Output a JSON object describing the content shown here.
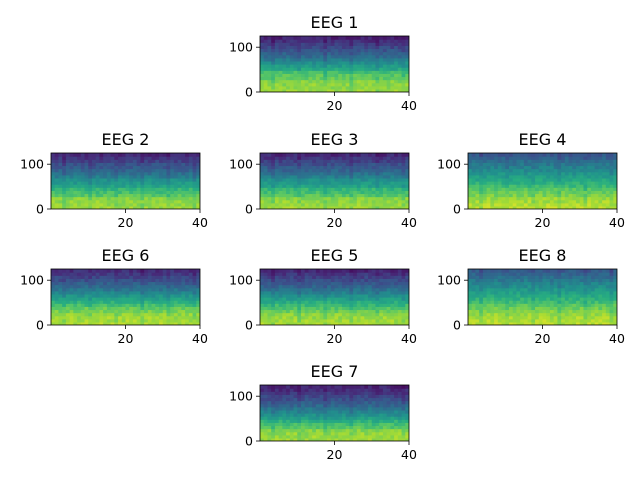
{
  "chart_data": [
    {
      "type": "heatmap",
      "title": "EEG 1",
      "xlim": [
        0,
        40
      ],
      "ylim": [
        0,
        125
      ],
      "xticks": [
        "20",
        "40"
      ],
      "yticks": [
        "0",
        "100"
      ],
      "colormap": "viridis",
      "band_profile": [
        0.85,
        0.84,
        0.83,
        0.82,
        0.76,
        0.74,
        0.7,
        0.6,
        0.55,
        0.5,
        0.42,
        0.36,
        0.32,
        0.27,
        0.22,
        0.18,
        0.14,
        0.1
      ]
    },
    {
      "type": "heatmap",
      "title": "EEG 2",
      "xlim": [
        0,
        40
      ],
      "ylim": [
        0,
        125
      ],
      "xticks": [
        "20",
        "40"
      ],
      "yticks": [
        "0",
        "100"
      ],
      "colormap": "viridis",
      "band_profile": [
        0.86,
        0.85,
        0.84,
        0.82,
        0.74,
        0.7,
        0.66,
        0.58,
        0.54,
        0.5,
        0.43,
        0.38,
        0.33,
        0.29,
        0.25,
        0.2,
        0.16,
        0.12
      ]
    },
    {
      "type": "heatmap",
      "title": "EEG 3",
      "xlim": [
        0,
        40
      ],
      "ylim": [
        0,
        125
      ],
      "xticks": [
        "20",
        "40"
      ],
      "yticks": [
        "0",
        "100"
      ],
      "colormap": "viridis",
      "band_profile": [
        0.86,
        0.85,
        0.84,
        0.82,
        0.74,
        0.7,
        0.66,
        0.58,
        0.54,
        0.5,
        0.43,
        0.38,
        0.33,
        0.29,
        0.25,
        0.2,
        0.16,
        0.12
      ]
    },
    {
      "type": "heatmap",
      "title": "EEG 4",
      "xlim": [
        0,
        40
      ],
      "ylim": [
        0,
        125
      ],
      "xticks": [
        "20",
        "40"
      ],
      "yticks": [
        "0",
        "100"
      ],
      "colormap": "viridis",
      "band_profile": [
        0.9,
        0.89,
        0.87,
        0.85,
        0.8,
        0.77,
        0.73,
        0.68,
        0.64,
        0.6,
        0.56,
        0.52,
        0.48,
        0.44,
        0.4,
        0.36,
        0.32,
        0.28
      ]
    },
    {
      "type": "heatmap",
      "title": "EEG 6",
      "xlim": [
        0,
        40
      ],
      "ylim": [
        0,
        125
      ],
      "xticks": [
        "20",
        "40"
      ],
      "yticks": [
        "0",
        "100"
      ],
      "colormap": "viridis",
      "band_profile": [
        0.88,
        0.87,
        0.86,
        0.84,
        0.8,
        0.76,
        0.7,
        0.64,
        0.58,
        0.52,
        0.46,
        0.4,
        0.35,
        0.3,
        0.25,
        0.21,
        0.17,
        0.14
      ]
    },
    {
      "type": "heatmap",
      "title": "EEG 5",
      "xlim": [
        0,
        40
      ],
      "ylim": [
        0,
        125
      ],
      "xticks": [
        "20",
        "40"
      ],
      "yticks": [
        "0",
        "100"
      ],
      "colormap": "viridis",
      "band_profile": [
        0.87,
        0.86,
        0.85,
        0.83,
        0.78,
        0.73,
        0.68,
        0.62,
        0.56,
        0.5,
        0.44,
        0.38,
        0.33,
        0.28,
        0.24,
        0.2,
        0.16,
        0.12
      ]
    },
    {
      "type": "heatmap",
      "title": "EEG 8",
      "xlim": [
        0,
        40
      ],
      "ylim": [
        0,
        125
      ],
      "xticks": [
        "20",
        "40"
      ],
      "yticks": [
        "0",
        "100"
      ],
      "colormap": "viridis",
      "band_profile": [
        0.9,
        0.89,
        0.87,
        0.85,
        0.81,
        0.78,
        0.74,
        0.69,
        0.65,
        0.61,
        0.57,
        0.53,
        0.49,
        0.45,
        0.41,
        0.37,
        0.33,
        0.29
      ]
    },
    {
      "type": "heatmap",
      "title": "EEG 7",
      "xlim": [
        0,
        40
      ],
      "ylim": [
        0,
        125
      ],
      "xticks": [
        "20",
        "40"
      ],
      "yticks": [
        "0",
        "100"
      ],
      "colormap": "viridis",
      "band_profile": [
        0.86,
        0.85,
        0.84,
        0.82,
        0.74,
        0.7,
        0.64,
        0.56,
        0.5,
        0.45,
        0.4,
        0.34,
        0.3,
        0.25,
        0.21,
        0.17,
        0.13,
        0.1
      ]
    }
  ]
}
